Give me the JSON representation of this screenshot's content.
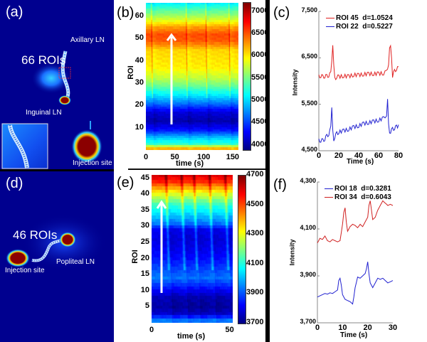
{
  "figure": {
    "panels": {
      "a": {
        "label": "(a)",
        "annotations": {
          "rois": "66 ROIs",
          "axillary": "Axillary LN",
          "inguinal": "Inguinal LN",
          "injection": "Injection site"
        }
      },
      "d": {
        "label": "(d)",
        "annotations": {
          "rois": "46 ROIs",
          "popliteal": "Popliteal LN",
          "injection": "Injection site"
        }
      },
      "b": {
        "label": "(b)"
      },
      "e": {
        "label": "(e)"
      },
      "c": {
        "label": "(c)"
      },
      "f": {
        "label": "(f)"
      }
    }
  },
  "chart_data": [
    {
      "id": "b",
      "type": "heatmap",
      "title": "",
      "xlabel": "time (s)",
      "ylabel": "ROI",
      "xlim": [
        0,
        160
      ],
      "ylim": [
        0,
        66
      ],
      "xticks": [
        "0",
        "50",
        "100",
        "150"
      ],
      "xtick_values": [
        0,
        50,
        100,
        150
      ],
      "yticks": [
        "10",
        "20",
        "30",
        "40",
        "50",
        "60"
      ],
      "ytick_values": [
        10,
        20,
        30,
        40,
        50,
        60
      ],
      "colorbar": {
        "min": 3900,
        "max": 7200,
        "ticks": [
          "4000",
          "4500",
          "5000",
          "5500",
          "6000",
          "6500",
          "7000"
        ],
        "tick_values": [
          4000,
          4500,
          5000,
          5500,
          6000,
          6500,
          7000
        ]
      },
      "profile_by_roi": [
        [
          1,
          6200
        ],
        [
          3,
          5300
        ],
        [
          6,
          4900
        ],
        [
          9,
          4400
        ],
        [
          13,
          4050
        ],
        [
          17,
          4200
        ],
        [
          21,
          4700
        ],
        [
          25,
          5100
        ],
        [
          29,
          5500
        ],
        [
          33,
          5800
        ],
        [
          37,
          6000
        ],
        [
          41,
          6050
        ],
        [
          45,
          6100
        ],
        [
          49,
          6500
        ],
        [
          52,
          6550
        ],
        [
          55,
          6300
        ],
        [
          58,
          5900
        ],
        [
          61,
          5600
        ],
        [
          64,
          5300
        ],
        [
          66,
          5100
        ]
      ],
      "wave_times": [
        12,
        72,
        106,
        146
      ],
      "annotation_arrow": {
        "from_roi": 13,
        "to_roi": 53,
        "time": 40
      }
    },
    {
      "id": "e",
      "type": "heatmap",
      "title": "",
      "xlabel": "time (s)",
      "ylabel": "ROI",
      "xlim": [
        0,
        52
      ],
      "ylim": [
        0,
        46
      ],
      "xticks": [
        "0",
        "50"
      ],
      "xtick_values": [
        0,
        50
      ],
      "yticks": [
        "5",
        "10",
        "15",
        "20",
        "25",
        "30",
        "35",
        "40",
        "45"
      ],
      "ytick_values": [
        5,
        10,
        15,
        20,
        25,
        30,
        35,
        40,
        45
      ],
      "colorbar": {
        "min": 3700,
        "max": 4700,
        "ticks": [
          "3700",
          "3900",
          "4100",
          "4300",
          "4500",
          "4700"
        ],
        "tick_values": [
          3700,
          3900,
          4100,
          4300,
          4500,
          4700
        ]
      },
      "profile_by_roi": [
        [
          1,
          3950
        ],
        [
          3,
          3780
        ],
        [
          5,
          3740
        ],
        [
          8,
          3760
        ],
        [
          11,
          3850
        ],
        [
          14,
          3950
        ],
        [
          17,
          3900
        ],
        [
          20,
          3850
        ],
        [
          23,
          3820
        ],
        [
          26,
          3800
        ],
        [
          29,
          3820
        ],
        [
          31,
          3950
        ],
        [
          34,
          4050
        ],
        [
          37,
          4150
        ],
        [
          40,
          4300
        ],
        [
          42,
          4420
        ],
        [
          44,
          4550
        ],
        [
          46,
          4620
        ]
      ],
      "wave_times": [
        12,
        22,
        30,
        40,
        50
      ],
      "annotation_arrow": {
        "from_roi": 10,
        "to_roi": 38,
        "time": 6
      }
    },
    {
      "id": "c",
      "type": "line",
      "title": "",
      "xlabel": "Time (s)",
      "ylabel": "Intensity",
      "xlim": [
        0,
        80
      ],
      "ylim": [
        4500,
        7500
      ],
      "xticks": [
        "0",
        "20",
        "40",
        "60",
        "80"
      ],
      "xtick_values": [
        0,
        20,
        40,
        60,
        80
      ],
      "yticks": [
        "4,500",
        "5,500",
        "6,500",
        "7,500"
      ],
      "ytick_values": [
        4500,
        5500,
        6500,
        7500
      ],
      "legend": "top-right",
      "series": [
        {
          "name": "ROI 45  d=1.0524",
          "color": "#e02020",
          "x": [
            0,
            2,
            4,
            6,
            8,
            10,
            12,
            13,
            14,
            15,
            16,
            18,
            20,
            25,
            30,
            35,
            40,
            45,
            50,
            55,
            60,
            65,
            68,
            70,
            71,
            72,
            73,
            74,
            76,
            78,
            80
          ],
          "y": [
            6100,
            6120,
            6110,
            6130,
            6140,
            6160,
            6200,
            6500,
            6760,
            6400,
            6050,
            6100,
            6080,
            6090,
            6070,
            6100,
            6090,
            6110,
            6120,
            6130,
            6140,
            6160,
            6200,
            6400,
            6700,
            6830,
            6500,
            6150,
            6250,
            6300,
            6310
          ]
        },
        {
          "name": "ROI 22  d=0.5227",
          "color": "#2020d0",
          "x": [
            0,
            2,
            4,
            6,
            8,
            10,
            11,
            12,
            13,
            14,
            15,
            16,
            18,
            20,
            25,
            30,
            35,
            40,
            45,
            50,
            55,
            60,
            65,
            68,
            69,
            70,
            71,
            72,
            74,
            76,
            78,
            80
          ],
          "y": [
            4720,
            4730,
            4740,
            4780,
            4850,
            4900,
            4950,
            5100,
            5420,
            5000,
            4680,
            4800,
            4860,
            4880,
            4900,
            4930,
            4970,
            5000,
            5050,
            5080,
            5110,
            5150,
            5200,
            5300,
            5600,
            5150,
            4880,
            4950,
            5000,
            5020,
            5040,
            5060
          ]
        }
      ]
    },
    {
      "id": "f",
      "type": "line",
      "title": "",
      "xlabel": "Time (s)",
      "ylabel": "Intensity",
      "xlim": [
        0,
        30
      ],
      "ylim": [
        3700,
        4300
      ],
      "xticks": [
        "0",
        "10",
        "20",
        "30"
      ],
      "xtick_values": [
        0,
        10,
        20,
        30
      ],
      "yticks": [
        "3,700",
        "3,900",
        "4,100",
        "4,300"
      ],
      "ytick_values": [
        3700,
        3900,
        4100,
        4300
      ],
      "legend": "top-right",
      "series": [
        {
          "name": "ROI 18  d=0.3281",
          "color": "#2020d0",
          "x": [
            0,
            1,
            2,
            3,
            4,
            5,
            6,
            7,
            8,
            8.5,
            9,
            9.5,
            10,
            11,
            12,
            13,
            14,
            14.5,
            15,
            16,
            17,
            18,
            19,
            19.5,
            20,
            20.5,
            21,
            22,
            23,
            24,
            25,
            26,
            27,
            28,
            29,
            30
          ],
          "y": [
            3810,
            3815,
            3820,
            3825,
            3822,
            3828,
            3825,
            3832,
            3840,
            3880,
            3890,
            3860,
            3820,
            3800,
            3795,
            3790,
            3780,
            3810,
            3850,
            3895,
            3890,
            3900,
            3910,
            3930,
            3960,
            3910,
            3870,
            3850,
            3870,
            3890,
            3885,
            3890,
            3880,
            3870,
            3875,
            3880
          ]
        },
        {
          "name": "ROI 34  d=0.6043",
          "color": "#d02020",
          "x": [
            0,
            1,
            2,
            3,
            4,
            5,
            6,
            7,
            8,
            9,
            10,
            10.5,
            11,
            11.5,
            12,
            13,
            14,
            15,
            16,
            17,
            18,
            19,
            20,
            20.5,
            21,
            21.5,
            22,
            23,
            24,
            25,
            26,
            27,
            28,
            29,
            30
          ],
          "y": [
            4040,
            4060,
            4055,
            4070,
            4050,
            4045,
            4055,
            4050,
            4045,
            4050,
            4120,
            4170,
            4190,
            4130,
            4090,
            4110,
            4120,
            4115,
            4105,
            4120,
            4110,
            4130,
            4150,
            4200,
            4220,
            4180,
            4140,
            4150,
            4180,
            4200,
            4220,
            4210,
            4200,
            4205,
            4200
          ]
        }
      ]
    }
  ]
}
